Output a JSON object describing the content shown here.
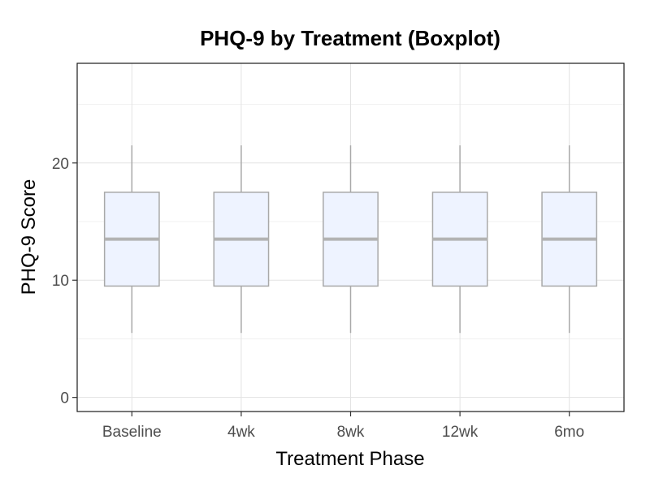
{
  "chart_data": {
    "type": "boxplot",
    "title": "PHQ-9 by Treatment (Boxplot)",
    "xlabel": "Treatment Phase",
    "ylabel": "PHQ-9 Score",
    "categories": [
      "Baseline",
      "4wk",
      "8wk",
      "12wk",
      "6mo"
    ],
    "y_ticks": [
      0,
      10,
      20
    ],
    "y_tick_labels": [
      "0",
      "10",
      "20"
    ],
    "ylim": [
      -1.2,
      28.5
    ],
    "grid": true,
    "boxes": [
      {
        "category": "Baseline",
        "min": 5.5,
        "q1": 9.5,
        "median": 13.5,
        "q3": 17.5,
        "max": 21.5
      },
      {
        "category": "4wk",
        "min": 5.5,
        "q1": 9.5,
        "median": 13.5,
        "q3": 17.5,
        "max": 21.5
      },
      {
        "category": "8wk",
        "min": 5.5,
        "q1": 9.5,
        "median": 13.5,
        "q3": 17.5,
        "max": 21.5
      },
      {
        "category": "12wk",
        "min": 5.5,
        "q1": 9.5,
        "median": 13.5,
        "q3": 17.5,
        "max": 21.5
      },
      {
        "category": "6mo",
        "min": 5.5,
        "q1": 9.5,
        "median": 13.5,
        "q3": 17.5,
        "max": 21.5
      }
    ],
    "colors": {
      "box_fill": "#eef3ff",
      "box_stroke": "#a9a9a9",
      "median": "#b3b3b3",
      "whisker": "#a9a9a9"
    }
  }
}
